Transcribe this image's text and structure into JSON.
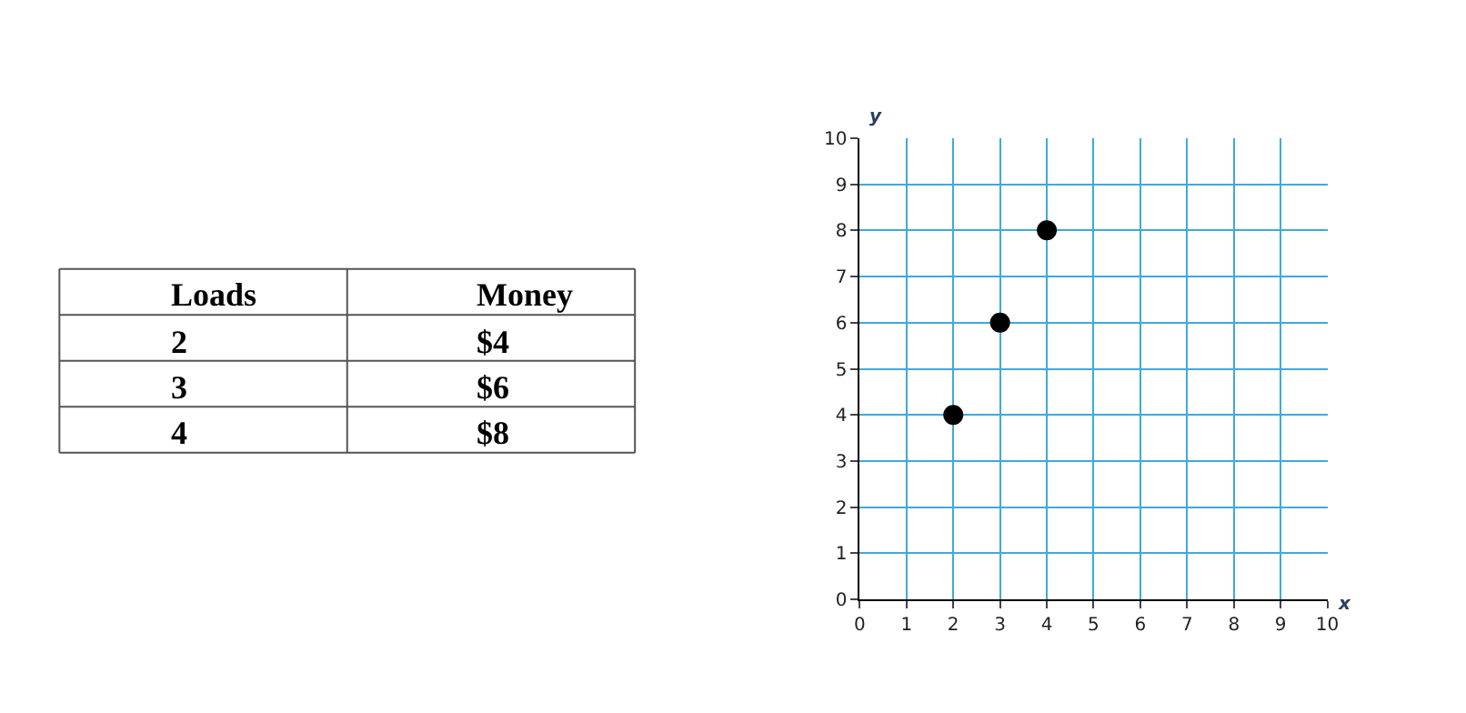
{
  "chart_data": [
    {
      "type": "other",
      "annotations": [
        "Loads",
        "Money",
        "2",
        "$4",
        "3",
        "$6",
        "4",
        "$8"
      ]
    },
    {
      "type": "scatter",
      "xlabel": "x",
      "ylabel": "y",
      "x": [
        2,
        3,
        4
      ],
      "series": [
        {
          "color": "#000000",
          "values": [
            4,
            6,
            8
          ]
        }
      ],
      "xlim": [
        0,
        10
      ],
      "ylim": [
        0,
        10
      ],
      "xticks": [
        0,
        1,
        2,
        3,
        4,
        5,
        6,
        7,
        8,
        9,
        10
      ],
      "yticks": [
        0,
        1,
        2,
        3,
        4,
        5,
        6,
        7,
        8,
        9,
        10
      ],
      "grid": true,
      "marker": "circle"
    }
  ]
}
